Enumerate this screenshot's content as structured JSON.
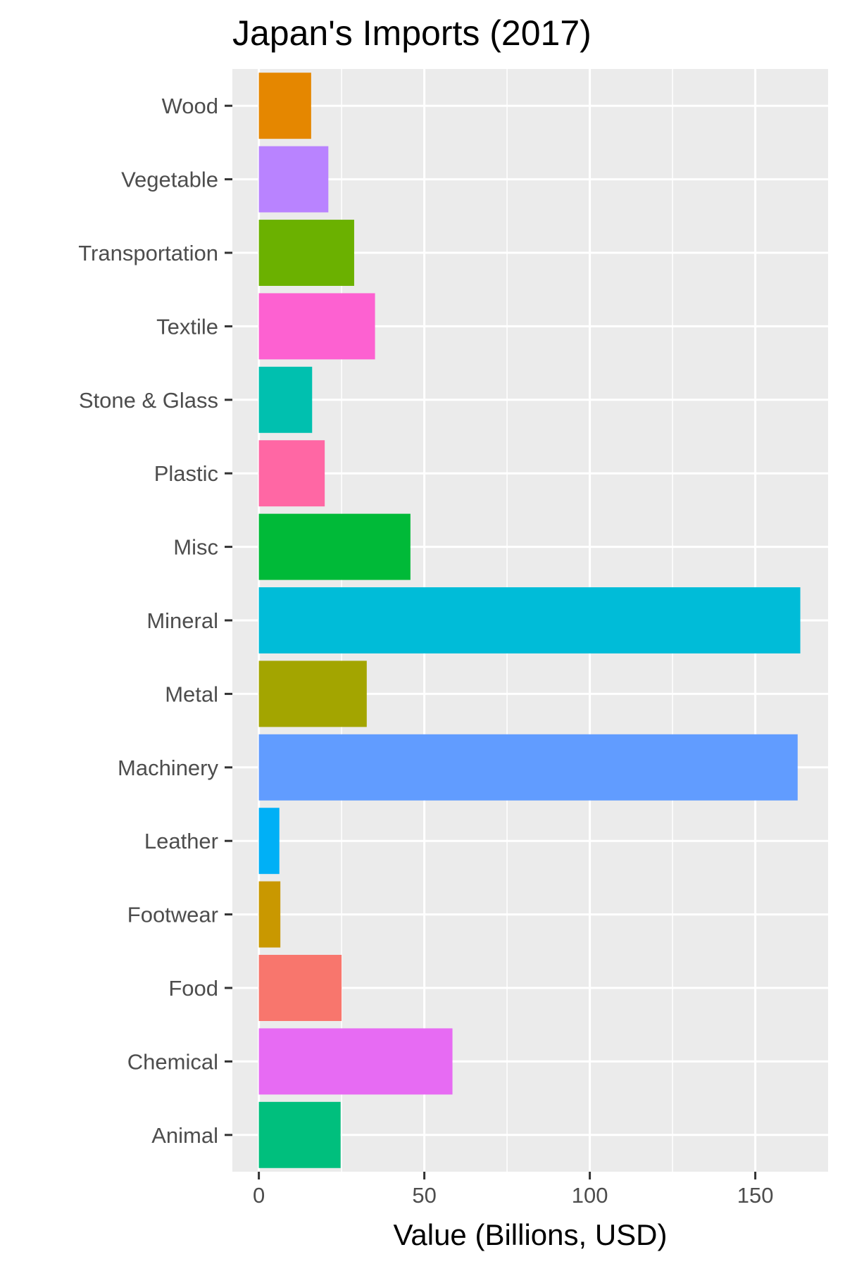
{
  "chart_data": {
    "type": "bar",
    "orientation": "horizontal",
    "title": "Japan's Imports (2017)",
    "xlabel": "Value (Billions, USD)",
    "ylabel": "",
    "xlim": [
      -8,
      172
    ],
    "xticks": [
      0,
      50,
      100,
      150
    ],
    "xtick_labels": [
      "0",
      "50",
      "100",
      "150"
    ],
    "grid": true,
    "legend": "none",
    "categories": [
      "Wood",
      "Vegetable",
      "Transportation",
      "Textile",
      "Stone & Glass",
      "Plastic",
      "Misc",
      "Mineral",
      "Metal",
      "Machinery",
      "Leather",
      "Footwear",
      "Food",
      "Chemical",
      "Animal"
    ],
    "values": [
      15.8,
      21,
      28.8,
      35.1,
      16.1,
      19.9,
      45.8,
      163.6,
      32.6,
      162.8,
      6.2,
      6.5,
      25,
      58.5,
      24.7
    ],
    "colors": [
      "#E58700",
      "#B983FF",
      "#6BB100",
      "#FD61D1",
      "#00C0AF",
      "#FF67A4",
      "#00BA38",
      "#00BCD8",
      "#A3A500",
      "#619CFF",
      "#00B0F6",
      "#C99800",
      "#F8766D",
      "#E76BF3",
      "#00BF7D"
    ]
  }
}
